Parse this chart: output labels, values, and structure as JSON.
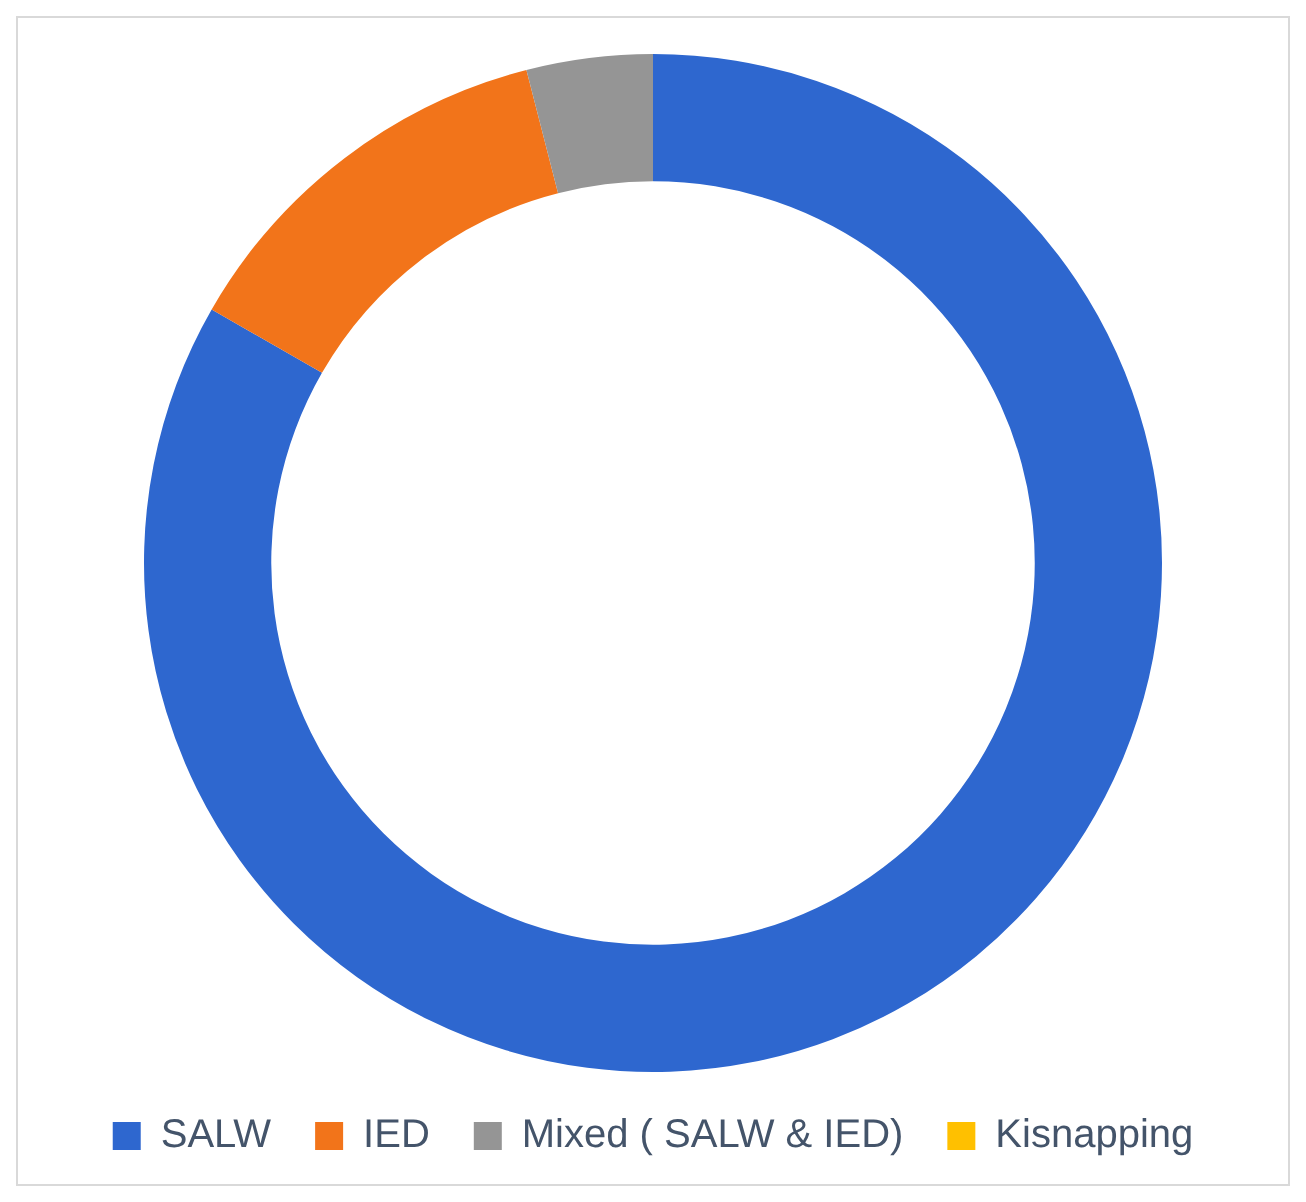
{
  "chart_data": {
    "type": "donut",
    "categories": [
      "SALW",
      "IED",
      "Mixed ( SALW & IED)",
      "Kisnapping"
    ],
    "values": [
      83.3,
      12.7,
      4.0,
      0
    ],
    "colors": [
      "#2e67cf",
      "#f2741a",
      "#959595",
      "#ffc000"
    ],
    "legend": "bottom"
  }
}
